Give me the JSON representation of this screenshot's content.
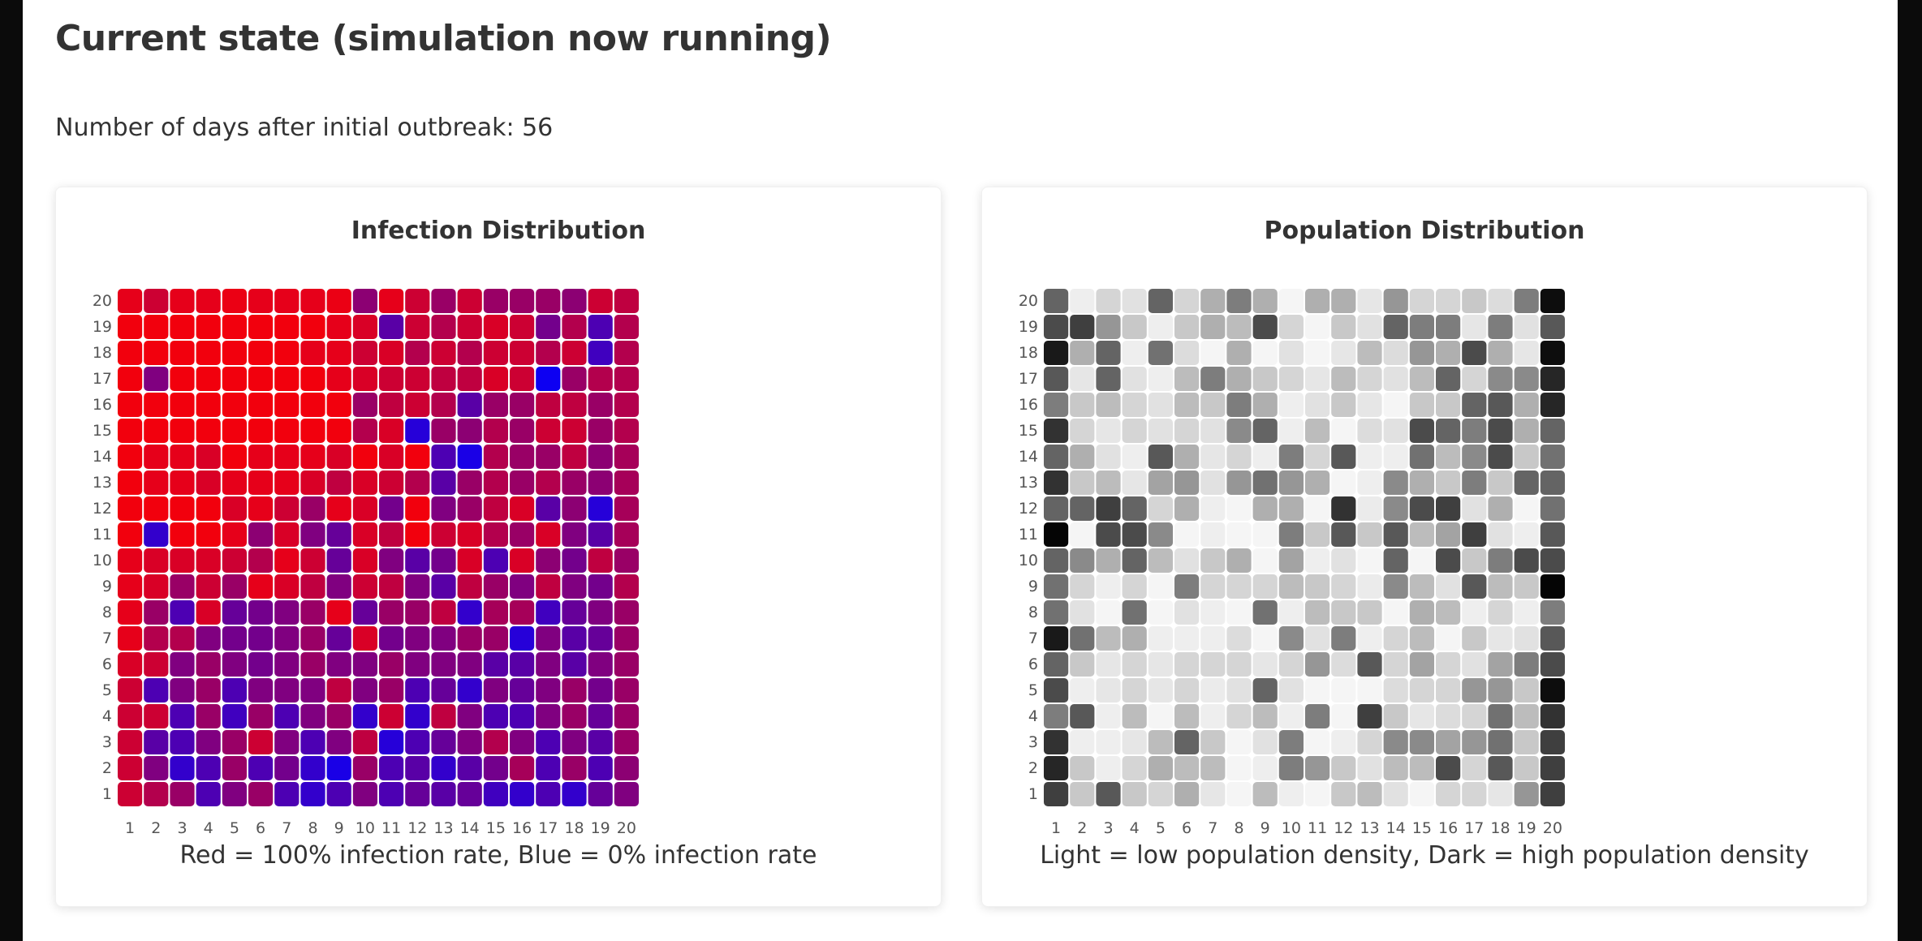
{
  "page": {
    "title": "Current state (simulation now running)",
    "days_label": "Number of days after initial outbreak: 56"
  },
  "infection": {
    "title": "Infection Distribution",
    "caption": "Red = 100% infection rate, Blue = 0% infection rate",
    "colors": {
      "full": "#ff0000",
      "zero": "#0000ff"
    }
  },
  "population": {
    "title": "Population Distribution",
    "caption": "Light = low population density, Dark = high population density",
    "colors": {
      "low": "#ffffff",
      "high": "#000000"
    }
  },
  "chart_data": [
    {
      "type": "heatmap",
      "title": "Infection Distribution",
      "x": [
        1,
        2,
        3,
        4,
        5,
        6,
        7,
        8,
        9,
        10,
        11,
        12,
        13,
        14,
        15,
        16,
        17,
        18,
        19,
        20
      ],
      "y": [
        1,
        2,
        3,
        4,
        5,
        6,
        7,
        8,
        9,
        10,
        11,
        12,
        13,
        14,
        15,
        16,
        17,
        18,
        19,
        20
      ],
      "value_meaning": "infection rate (1 = 100%, 0 = 0%)",
      "values_rows_top_to_bottom": [
        [
          0.9,
          0.8,
          0.9,
          0.9,
          0.92,
          0.9,
          0.9,
          0.9,
          0.92,
          0.55,
          0.9,
          0.8,
          0.6,
          0.8,
          0.6,
          0.6,
          0.6,
          0.55,
          0.8,
          0.75
        ],
        [
          0.95,
          0.95,
          0.95,
          0.95,
          0.95,
          0.95,
          0.95,
          0.95,
          0.9,
          0.85,
          0.35,
          0.8,
          0.7,
          0.8,
          0.85,
          0.8,
          0.45,
          0.7,
          0.3,
          0.7
        ],
        [
          0.95,
          0.95,
          0.95,
          0.95,
          0.95,
          0.95,
          0.95,
          0.9,
          0.9,
          0.8,
          0.85,
          0.7,
          0.8,
          0.7,
          0.8,
          0.8,
          0.7,
          0.8,
          0.25,
          0.7
        ],
        [
          0.95,
          0.5,
          0.95,
          0.95,
          0.95,
          0.95,
          0.95,
          0.95,
          0.9,
          0.85,
          0.8,
          0.8,
          0.75,
          0.75,
          0.85,
          0.8,
          0.05,
          0.6,
          0.7,
          0.7
        ],
        [
          0.95,
          0.95,
          0.95,
          0.95,
          0.95,
          0.95,
          0.95,
          0.95,
          0.95,
          0.6,
          0.75,
          0.8,
          0.7,
          0.35,
          0.6,
          0.6,
          0.75,
          0.75,
          0.6,
          0.7
        ],
        [
          0.95,
          0.95,
          0.95,
          0.95,
          0.95,
          0.95,
          0.95,
          0.95,
          0.95,
          0.7,
          0.85,
          0.15,
          0.6,
          0.55,
          0.7,
          0.6,
          0.8,
          0.8,
          0.6,
          0.7
        ],
        [
          0.95,
          0.9,
          0.9,
          0.85,
          0.95,
          0.9,
          0.9,
          0.9,
          0.85,
          0.95,
          0.85,
          0.95,
          0.3,
          0.1,
          0.7,
          0.6,
          0.6,
          0.75,
          0.55,
          0.65
        ],
        [
          0.95,
          0.9,
          0.9,
          0.85,
          0.9,
          0.9,
          0.9,
          0.85,
          0.75,
          0.85,
          0.8,
          0.7,
          0.35,
          0.6,
          0.7,
          0.6,
          0.7,
          0.6,
          0.55,
          0.65
        ],
        [
          0.95,
          0.95,
          0.95,
          0.95,
          0.85,
          0.9,
          0.8,
          0.6,
          0.9,
          0.85,
          0.45,
          0.95,
          0.5,
          0.6,
          0.75,
          0.85,
          0.35,
          0.55,
          0.15,
          0.65
        ],
        [
          0.95,
          0.2,
          0.95,
          0.95,
          0.9,
          0.55,
          0.85,
          0.5,
          0.4,
          0.85,
          0.75,
          0.95,
          0.8,
          0.85,
          0.7,
          0.6,
          0.85,
          0.5,
          0.35,
          0.65
        ],
        [
          0.9,
          0.85,
          0.85,
          0.85,
          0.8,
          0.7,
          0.9,
          0.8,
          0.4,
          0.85,
          0.5,
          0.35,
          0.45,
          0.85,
          0.3,
          0.85,
          0.55,
          0.45,
          0.75,
          0.6
        ],
        [
          0.9,
          0.85,
          0.6,
          0.8,
          0.6,
          0.9,
          0.85,
          0.75,
          0.5,
          0.8,
          0.75,
          0.5,
          0.35,
          0.75,
          0.6,
          0.5,
          0.75,
          0.5,
          0.45,
          0.7
        ],
        [
          0.9,
          0.6,
          0.3,
          0.85,
          0.4,
          0.45,
          0.5,
          0.6,
          0.9,
          0.4,
          0.6,
          0.6,
          0.75,
          0.2,
          0.65,
          0.65,
          0.25,
          0.4,
          0.5,
          0.6
        ],
        [
          0.9,
          0.7,
          0.7,
          0.5,
          0.45,
          0.45,
          0.5,
          0.6,
          0.4,
          0.85,
          0.45,
          0.5,
          0.5,
          0.6,
          0.6,
          0.15,
          0.5,
          0.35,
          0.4,
          0.6
        ],
        [
          0.85,
          0.8,
          0.5,
          0.6,
          0.5,
          0.45,
          0.5,
          0.6,
          0.5,
          0.5,
          0.6,
          0.5,
          0.5,
          0.5,
          0.35,
          0.35,
          0.5,
          0.35,
          0.5,
          0.6
        ],
        [
          0.8,
          0.3,
          0.5,
          0.6,
          0.3,
          0.5,
          0.5,
          0.5,
          0.75,
          0.5,
          0.6,
          0.3,
          0.4,
          0.2,
          0.5,
          0.4,
          0.5,
          0.6,
          0.45,
          0.6
        ],
        [
          0.8,
          0.8,
          0.3,
          0.6,
          0.25,
          0.6,
          0.3,
          0.5,
          0.6,
          0.2,
          0.8,
          0.2,
          0.75,
          0.5,
          0.3,
          0.3,
          0.5,
          0.6,
          0.4,
          0.6
        ],
        [
          0.8,
          0.35,
          0.3,
          0.5,
          0.6,
          0.8,
          0.5,
          0.3,
          0.5,
          0.75,
          0.15,
          0.3,
          0.4,
          0.5,
          0.7,
          0.5,
          0.3,
          0.5,
          0.35,
          0.6
        ],
        [
          0.8,
          0.5,
          0.2,
          0.3,
          0.6,
          0.3,
          0.45,
          0.2,
          0.1,
          0.6,
          0.3,
          0.35,
          0.2,
          0.35,
          0.45,
          0.65,
          0.3,
          0.6,
          0.3,
          0.55
        ],
        [
          0.8,
          0.7,
          0.6,
          0.3,
          0.5,
          0.6,
          0.3,
          0.2,
          0.3,
          0.5,
          0.3,
          0.4,
          0.35,
          0.4,
          0.25,
          0.2,
          0.3,
          0.2,
          0.4,
          0.5
        ]
      ]
    },
    {
      "type": "heatmap",
      "title": "Population Distribution",
      "x": [
        1,
        2,
        3,
        4,
        5,
        6,
        7,
        8,
        9,
        10,
        11,
        12,
        13,
        14,
        15,
        16,
        17,
        18,
        19,
        20
      ],
      "y": [
        1,
        2,
        3,
        4,
        5,
        6,
        7,
        8,
        9,
        10,
        11,
        12,
        13,
        14,
        15,
        16,
        17,
        18,
        19,
        20
      ],
      "value_meaning": "population density (0 = low, 1 = high)",
      "values_rows_top_to_bottom": [
        [
          0.6,
          0.05,
          0.15,
          0.1,
          0.6,
          0.15,
          0.3,
          0.5,
          0.3,
          0.02,
          0.3,
          0.3,
          0.08,
          0.4,
          0.15,
          0.15,
          0.2,
          0.12,
          0.5,
          0.95
        ],
        [
          0.7,
          0.75,
          0.4,
          0.2,
          0.05,
          0.2,
          0.3,
          0.25,
          0.7,
          0.15,
          0.02,
          0.2,
          0.1,
          0.6,
          0.5,
          0.5,
          0.08,
          0.5,
          0.1,
          0.65
        ],
        [
          0.9,
          0.3,
          0.6,
          0.05,
          0.55,
          0.12,
          0.02,
          0.3,
          0.02,
          0.1,
          0.02,
          0.08,
          0.25,
          0.12,
          0.4,
          0.3,
          0.7,
          0.3,
          0.08,
          0.95
        ],
        [
          0.65,
          0.08,
          0.6,
          0.1,
          0.05,
          0.25,
          0.5,
          0.3,
          0.2,
          0.15,
          0.08,
          0.25,
          0.15,
          0.1,
          0.25,
          0.6,
          0.15,
          0.45,
          0.45,
          0.85
        ],
        [
          0.5,
          0.2,
          0.25,
          0.15,
          0.1,
          0.25,
          0.2,
          0.5,
          0.3,
          0.05,
          0.1,
          0.2,
          0.08,
          0.02,
          0.2,
          0.2,
          0.6,
          0.65,
          0.3,
          0.85
        ],
        [
          0.8,
          0.15,
          0.08,
          0.15,
          0.1,
          0.15,
          0.1,
          0.45,
          0.6,
          0.05,
          0.25,
          0.02,
          0.12,
          0.1,
          0.7,
          0.6,
          0.5,
          0.7,
          0.3,
          0.6
        ],
        [
          0.6,
          0.3,
          0.1,
          0.05,
          0.65,
          0.3,
          0.08,
          0.15,
          0.05,
          0.5,
          0.15,
          0.65,
          0.05,
          0.05,
          0.55,
          0.25,
          0.45,
          0.7,
          0.2,
          0.55
        ],
        [
          0.8,
          0.2,
          0.25,
          0.08,
          0.35,
          0.4,
          0.1,
          0.4,
          0.55,
          0.4,
          0.3,
          0.02,
          0.05,
          0.45,
          0.3,
          0.2,
          0.5,
          0.2,
          0.6,
          0.6
        ],
        [
          0.6,
          0.6,
          0.75,
          0.6,
          0.15,
          0.3,
          0.05,
          0.02,
          0.3,
          0.3,
          0.02,
          0.8,
          0.06,
          0.45,
          0.7,
          0.75,
          0.1,
          0.3,
          0.02,
          0.55
        ],
        [
          0.98,
          0.02,
          0.7,
          0.7,
          0.45,
          0.02,
          0.05,
          0.02,
          0.02,
          0.5,
          0.2,
          0.65,
          0.2,
          0.65,
          0.25,
          0.35,
          0.75,
          0.1,
          0.05,
          0.65
        ],
        [
          0.6,
          0.45,
          0.3,
          0.6,
          0.25,
          0.1,
          0.2,
          0.3,
          0.02,
          0.35,
          0.05,
          0.1,
          0.02,
          0.6,
          0.02,
          0.7,
          0.2,
          0.5,
          0.7,
          0.7
        ],
        [
          0.55,
          0.15,
          0.05,
          0.15,
          0.02,
          0.5,
          0.15,
          0.15,
          0.15,
          0.25,
          0.2,
          0.15,
          0.06,
          0.45,
          0.25,
          0.1,
          0.65,
          0.25,
          0.2,
          0.98
        ],
        [
          0.55,
          0.1,
          0.02,
          0.55,
          0.02,
          0.1,
          0.05,
          0.02,
          0.55,
          0.05,
          0.25,
          0.2,
          0.2,
          0.02,
          0.3,
          0.25,
          0.05,
          0.15,
          0.05,
          0.5
        ],
        [
          0.9,
          0.55,
          0.25,
          0.3,
          0.05,
          0.05,
          0.05,
          0.12,
          0.02,
          0.45,
          0.1,
          0.5,
          0.05,
          0.15,
          0.25,
          0.02,
          0.2,
          0.08,
          0.1,
          0.65
        ],
        [
          0.6,
          0.2,
          0.08,
          0.15,
          0.08,
          0.15,
          0.15,
          0.15,
          0.08,
          0.15,
          0.4,
          0.12,
          0.65,
          0.15,
          0.35,
          0.15,
          0.1,
          0.35,
          0.5,
          0.7
        ],
        [
          0.7,
          0.05,
          0.08,
          0.15,
          0.08,
          0.15,
          0.06,
          0.1,
          0.6,
          0.1,
          0.02,
          0.02,
          0.02,
          0.12,
          0.15,
          0.15,
          0.4,
          0.4,
          0.2,
          0.95
        ],
        [
          0.5,
          0.65,
          0.05,
          0.25,
          0.02,
          0.25,
          0.05,
          0.15,
          0.25,
          0.05,
          0.5,
          0.02,
          0.75,
          0.2,
          0.08,
          0.12,
          0.15,
          0.55,
          0.25,
          0.8
        ],
        [
          0.8,
          0.05,
          0.05,
          0.08,
          0.25,
          0.6,
          0.2,
          0.02,
          0.1,
          0.5,
          0.02,
          0.05,
          0.15,
          0.45,
          0.45,
          0.35,
          0.4,
          0.55,
          0.2,
          0.75
        ],
        [
          0.85,
          0.2,
          0.05,
          0.15,
          0.3,
          0.25,
          0.25,
          0.02,
          0.05,
          0.5,
          0.4,
          0.2,
          0.1,
          0.25,
          0.25,
          0.7,
          0.15,
          0.65,
          0.2,
          0.75
        ],
        [
          0.75,
          0.2,
          0.65,
          0.2,
          0.15,
          0.3,
          0.08,
          0.02,
          0.25,
          0.05,
          0.02,
          0.2,
          0.25,
          0.1,
          0.02,
          0.15,
          0.15,
          0.08,
          0.4,
          0.75
        ]
      ]
    }
  ]
}
